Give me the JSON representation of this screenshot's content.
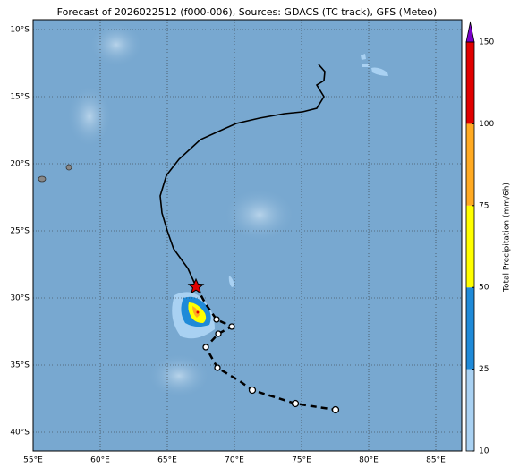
{
  "title": "Forecast of 2026022512 (f000-006), Sources: GDACS (TC track), GFS (Meteo)",
  "map": {
    "lat_labels": [
      "10°S",
      "15°S",
      "20°S",
      "25°S",
      "30°S",
      "35°S",
      "40°S"
    ],
    "lon_labels": [
      "55°E",
      "60°E",
      "65°E",
      "70°E",
      "75°E",
      "80°E",
      "85°E"
    ]
  },
  "colorbar": {
    "label": "Total Precipitation (mm/6h)",
    "ticks": [
      10,
      25,
      50,
      75,
      100,
      150
    ],
    "colors": [
      "#a9d1f2",
      "#1f8ad8",
      "#ffff00",
      "#ffaa22",
      "#e00000"
    ],
    "extend_color": "#7a00c8"
  }
}
